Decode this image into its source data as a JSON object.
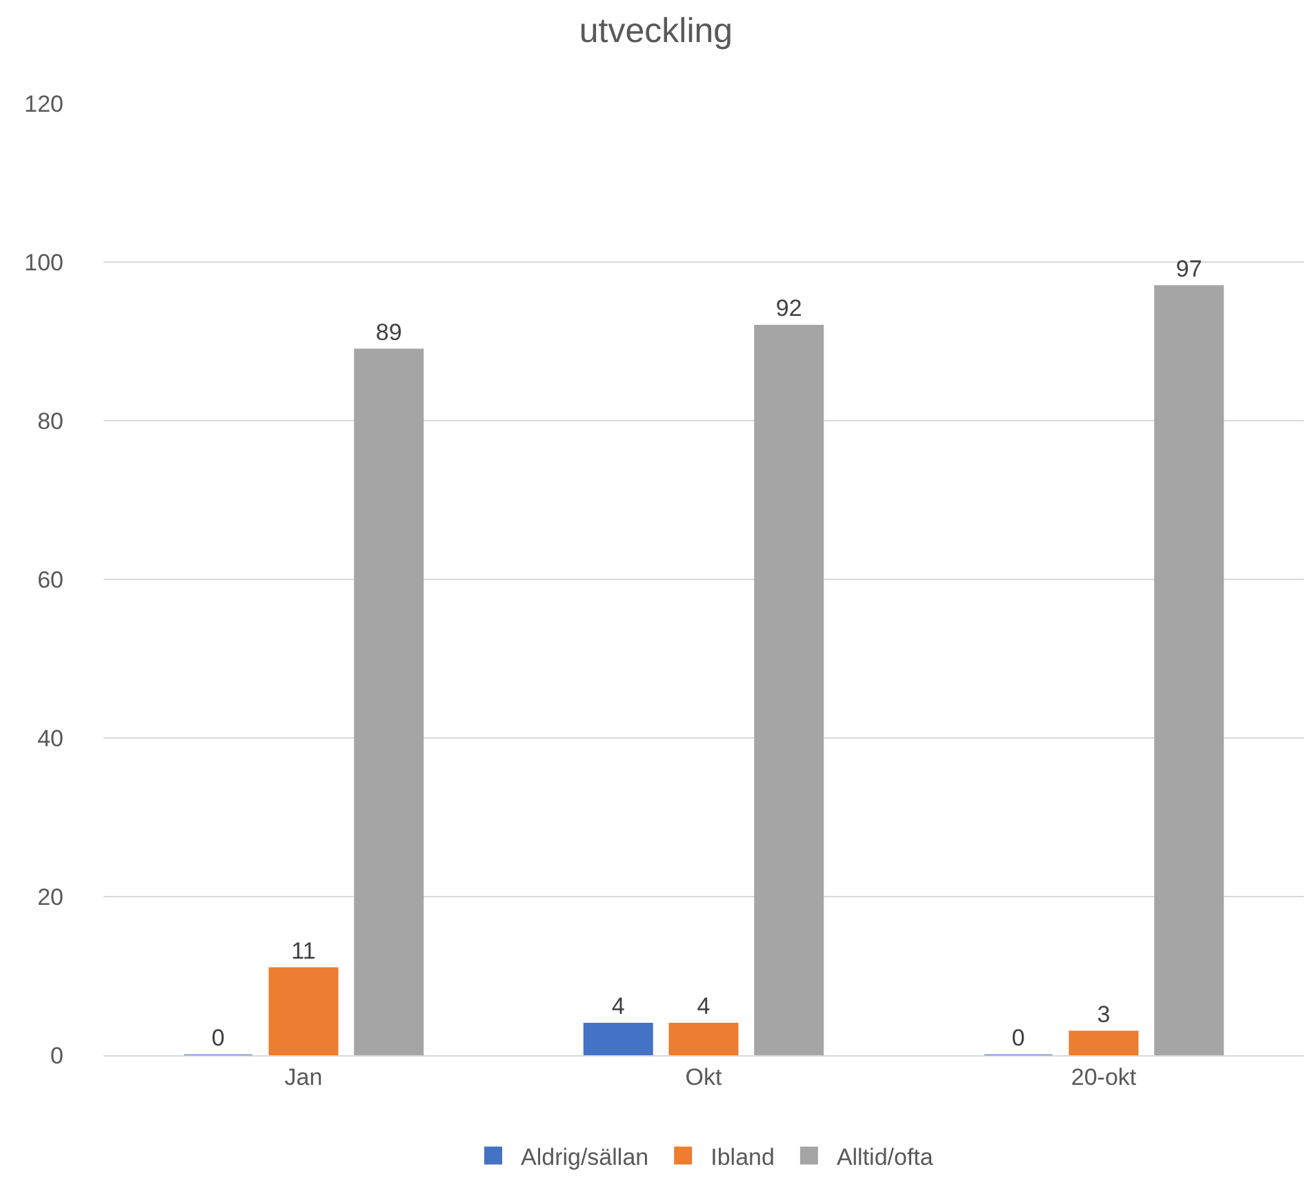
{
  "chart_data": {
    "type": "bar",
    "title": "utveckling",
    "categories": [
      "Jan",
      "Okt",
      "20-okt"
    ],
    "series": [
      {
        "name": "Aldrig/sällan",
        "color": "#4472c4",
        "values": [
          0,
          4,
          0
        ]
      },
      {
        "name": "Ibland",
        "color": "#ed7d31",
        "values": [
          11,
          4,
          3
        ]
      },
      {
        "name": "Alltid/ofta",
        "color": "#a5a5a5",
        "values": [
          89,
          92,
          97
        ]
      }
    ],
    "ylim": [
      0,
      120
    ],
    "yticks": [
      0,
      20,
      40,
      60,
      80,
      100,
      120
    ],
    "grid": "y",
    "legend": "bottom",
    "data_labels": true
  }
}
